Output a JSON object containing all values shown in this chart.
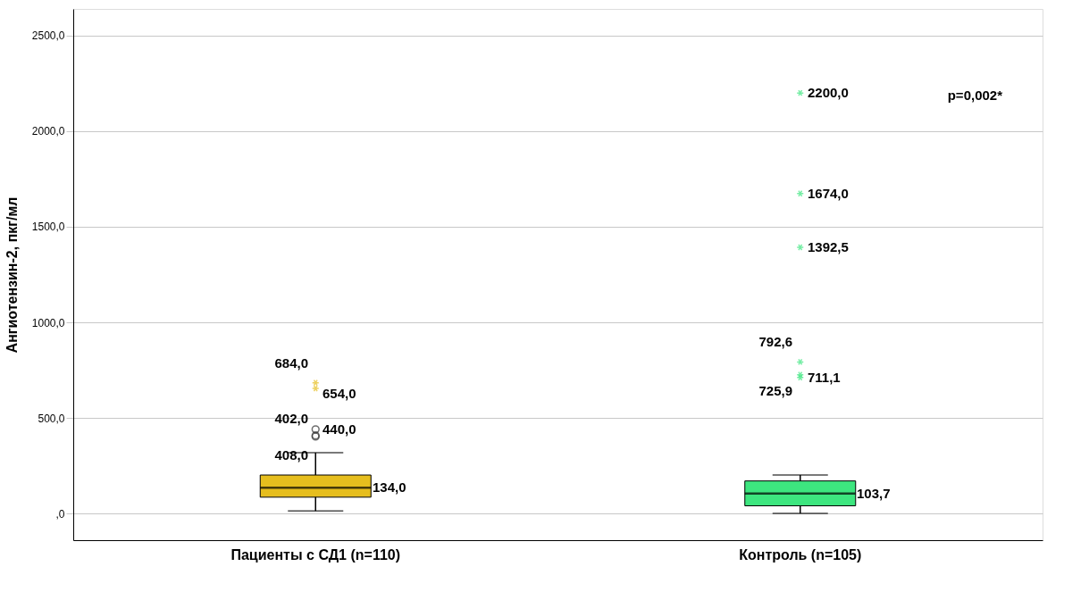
{
  "chart_data": {
    "type": "box",
    "ylabel": "Ангиотензин-2, пкг/мл",
    "categories": [
      "Пациенты с СД1 (n=110)",
      "Контроль (n=105)"
    ],
    "colors": [
      "#e6be1e",
      "#3de67f"
    ],
    "boxes": [
      {
        "low": 13,
        "q1": 85,
        "median": 134.0,
        "q3": 201,
        "high": 318,
        "outliers": [
          684.0,
          654.0,
          440.0,
          408.0,
          402.0
        ]
      },
      {
        "low": 0,
        "q1": 40,
        "median": 103.7,
        "q3": 170,
        "high": 201,
        "outliers": [
          2200.0,
          1674.0,
          1392.5,
          792.6,
          725.9,
          711.1
        ]
      }
    ],
    "ylim": [
      -140,
      2640
    ],
    "yticks": [
      {
        "value": 0,
        "label": ",0"
      },
      {
        "value": 500,
        "label": "500,0"
      },
      {
        "value": 1000,
        "label": "1000,0"
      },
      {
        "value": 1500,
        "label": "1500,0"
      },
      {
        "value": 2000,
        "label": "2000,0"
      },
      {
        "value": 2500,
        "label": "2500,0"
      }
    ],
    "grid": "y",
    "annotations": [
      "p=0,002*",
      "134,0",
      "684,0",
      "654,0",
      "440,0",
      "408,0",
      "402,0",
      "103,7",
      "2200,0",
      "1674,0",
      "1392,5",
      "792,6",
      "725,9",
      "711,1"
    ]
  }
}
